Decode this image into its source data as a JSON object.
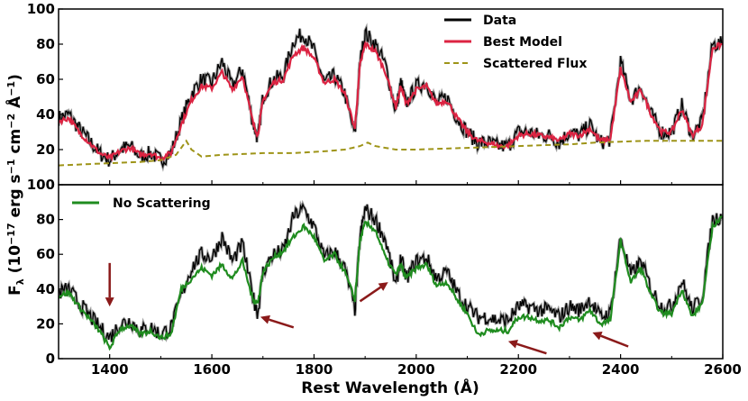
{
  "chart_data": [
    {
      "type": "line",
      "panel": "top",
      "xlim": [
        1300,
        2600
      ],
      "ylim": [
        0,
        100
      ],
      "ylabel_main": "F",
      "ylabel_sub": "λ",
      "ylabel_rest": " (10",
      "ylabel_exp1": "−17",
      "ylabel_mid": " erg s",
      "ylabel_exp2": "−1",
      "ylabel_mid2": " cm",
      "ylabel_exp3": "−2",
      "ylabel_mid3": " Å",
      "ylabel_exp4": "−1",
      "ylabel_end": ")",
      "xticks": [
        "1400",
        "1600",
        "1800",
        "2000",
        "2200",
        "2400",
        "2600"
      ],
      "yticks": [
        "20",
        "40",
        "60",
        "80",
        "100"
      ],
      "legend_position": "top-right",
      "series": [
        {
          "name": "Data",
          "color": "#000000",
          "style": "solid",
          "x": [
            1300,
            1320,
            1340,
            1360,
            1380,
            1400,
            1420,
            1440,
            1460,
            1480,
            1500,
            1520,
            1540,
            1560,
            1580,
            1600,
            1620,
            1640,
            1660,
            1680,
            1690,
            1700,
            1720,
            1740,
            1760,
            1780,
            1800,
            1820,
            1840,
            1860,
            1880,
            1890,
            1900,
            1920,
            1940,
            1960,
            1970,
            1980,
            2000,
            2020,
            2040,
            2060,
            2080,
            2100,
            2120,
            2140,
            2160,
            2180,
            2200,
            2220,
            2240,
            2260,
            2280,
            2300,
            2320,
            2340,
            2360,
            2380,
            2400,
            2420,
            2440,
            2460,
            2480,
            2500,
            2520,
            2540,
            2560,
            2580,
            2600
          ],
          "y": [
            38,
            40,
            32,
            25,
            18,
            14,
            20,
            22,
            16,
            18,
            14,
            18,
            36,
            52,
            60,
            58,
            70,
            56,
            66,
            36,
            26,
            50,
            60,
            62,
            82,
            86,
            76,
            58,
            62,
            52,
            28,
            70,
            86,
            80,
            68,
            42,
            58,
            46,
            56,
            58,
            46,
            50,
            38,
            30,
            24,
            24,
            22,
            22,
            30,
            30,
            28,
            28,
            24,
            30,
            28,
            34,
            24,
            26,
            70,
            48,
            56,
            40,
            30,
            30,
            45,
            28,
            36,
            80,
            80
          ]
        },
        {
          "name": "Best Model",
          "color": "#dc2342",
          "style": "solid",
          "x": [
            1300,
            1320,
            1340,
            1360,
            1380,
            1400,
            1420,
            1440,
            1460,
            1480,
            1500,
            1520,
            1540,
            1560,
            1580,
            1600,
            1620,
            1640,
            1660,
            1680,
            1690,
            1700,
            1720,
            1740,
            1760,
            1780,
            1800,
            1820,
            1840,
            1860,
            1880,
            1890,
            1900,
            1920,
            1940,
            1960,
            1970,
            1980,
            2000,
            2020,
            2040,
            2060,
            2080,
            2100,
            2120,
            2140,
            2160,
            2180,
            2200,
            2220,
            2240,
            2260,
            2280,
            2300,
            2320,
            2340,
            2360,
            2380,
            2400,
            2420,
            2440,
            2460,
            2480,
            2500,
            2520,
            2540,
            2560,
            2580,
            2600
          ],
          "y": [
            36,
            38,
            30,
            24,
            18,
            15,
            19,
            21,
            17,
            18,
            15,
            18,
            34,
            48,
            56,
            55,
            64,
            54,
            62,
            36,
            28,
            48,
            58,
            60,
            74,
            78,
            72,
            58,
            60,
            52,
            32,
            68,
            80,
            76,
            64,
            44,
            56,
            46,
            54,
            56,
            46,
            48,
            38,
            30,
            25,
            24,
            22,
            22,
            28,
            29,
            28,
            27,
            25,
            29,
            28,
            32,
            25,
            26,
            66,
            47,
            54,
            40,
            30,
            30,
            43,
            28,
            34,
            78,
            80
          ]
        },
        {
          "name": "Scattered Flux",
          "color": "#9e9418",
          "style": "dashed",
          "x": [
            1300,
            1340,
            1380,
            1420,
            1460,
            1500,
            1530,
            1550,
            1560,
            1580,
            1620,
            1700,
            1760,
            1820,
            1860,
            1890,
            1905,
            1920,
            1960,
            2000,
            2100,
            2200,
            2300,
            2350,
            2400,
            2450,
            2500,
            2600
          ],
          "y": [
            11,
            11.5,
            12,
            12.5,
            13,
            14,
            17,
            25,
            20,
            16,
            17,
            18,
            18,
            19,
            20,
            22,
            24,
            22,
            20,
            20,
            21,
            22,
            23,
            24,
            24.5,
            25,
            25,
            25
          ]
        }
      ]
    },
    {
      "type": "line",
      "panel": "bottom",
      "xlim": [
        1300,
        2600
      ],
      "ylim": [
        0,
        100
      ],
      "xlabel": "Rest Wavelength (Å)",
      "xticks": [
        "1400",
        "1600",
        "1800",
        "2000",
        "2200",
        "2400",
        "2600"
      ],
      "yticks": [
        "0",
        "20",
        "40",
        "60",
        "80",
        "100"
      ],
      "legend_position": "top-left",
      "series": [
        {
          "name": "Data",
          "color": "#000000",
          "style": "solid",
          "x": [
            1300,
            1320,
            1340,
            1360,
            1380,
            1400,
            1420,
            1440,
            1460,
            1480,
            1500,
            1520,
            1540,
            1560,
            1580,
            1600,
            1620,
            1640,
            1660,
            1680,
            1690,
            1700,
            1720,
            1740,
            1760,
            1780,
            1800,
            1820,
            1840,
            1860,
            1880,
            1890,
            1900,
            1920,
            1940,
            1960,
            1970,
            1980,
            2000,
            2020,
            2040,
            2060,
            2080,
            2100,
            2120,
            2140,
            2160,
            2180,
            2200,
            2220,
            2240,
            2260,
            2280,
            2300,
            2320,
            2340,
            2360,
            2380,
            2400,
            2420,
            2440,
            2460,
            2480,
            2500,
            2520,
            2540,
            2560,
            2580,
            2600
          ],
          "y": [
            38,
            40,
            32,
            25,
            18,
            12,
            20,
            22,
            16,
            18,
            14,
            18,
            36,
            52,
            60,
            58,
            70,
            56,
            66,
            36,
            26,
            50,
            60,
            62,
            82,
            86,
            76,
            58,
            62,
            52,
            28,
            70,
            86,
            80,
            68,
            42,
            58,
            46,
            56,
            58,
            46,
            50,
            38,
            30,
            24,
            24,
            22,
            22,
            30,
            30,
            28,
            28,
            24,
            30,
            28,
            34,
            24,
            26,
            70,
            48,
            56,
            40,
            30,
            30,
            45,
            28,
            36,
            80,
            82
          ]
        },
        {
          "name": "No Scattering",
          "color": "#1f8c1f",
          "style": "solid",
          "x": [
            1300,
            1320,
            1340,
            1360,
            1380,
            1400,
            1420,
            1440,
            1460,
            1480,
            1500,
            1520,
            1540,
            1560,
            1580,
            1600,
            1620,
            1640,
            1660,
            1680,
            1690,
            1700,
            1720,
            1740,
            1760,
            1780,
            1800,
            1820,
            1840,
            1860,
            1880,
            1890,
            1900,
            1920,
            1940,
            1960,
            1970,
            1980,
            2000,
            2020,
            2040,
            2060,
            2080,
            2100,
            2120,
            2140,
            2160,
            2180,
            2200,
            2220,
            2240,
            2260,
            2280,
            2300,
            2320,
            2340,
            2360,
            2380,
            2400,
            2420,
            2440,
            2460,
            2480,
            2500,
            2520,
            2540,
            2560,
            2580,
            2600
          ],
          "y": [
            36,
            38,
            30,
            23,
            16,
            6,
            17,
            19,
            14,
            16,
            12,
            14,
            40,
            46,
            52,
            48,
            54,
            46,
            56,
            34,
            32,
            50,
            58,
            62,
            70,
            76,
            70,
            56,
            60,
            50,
            34,
            68,
            78,
            74,
            58,
            48,
            54,
            46,
            52,
            54,
            42,
            44,
            34,
            26,
            14,
            16,
            16,
            16,
            24,
            24,
            22,
            22,
            18,
            24,
            22,
            28,
            20,
            22,
            68,
            44,
            52,
            36,
            26,
            26,
            40,
            24,
            32,
            76,
            82
          ]
        }
      ],
      "annotations": [
        {
          "name": "arrow-1400",
          "color": "#8b1a1a",
          "tip": [
            1400,
            30
          ],
          "tail": [
            1400,
            55
          ]
        },
        {
          "name": "arrow-1690",
          "color": "#8b1a1a",
          "tip": [
            1695,
            24
          ],
          "tail": [
            1760,
            18
          ]
        },
        {
          "name": "arrow-1950",
          "color": "#8b1a1a",
          "tip": [
            1945,
            44
          ],
          "tail": [
            1890,
            33
          ]
        },
        {
          "name": "arrow-2180",
          "color": "#8b1a1a",
          "tip": [
            2180,
            10
          ],
          "tail": [
            2255,
            3
          ]
        },
        {
          "name": "arrow-2350",
          "color": "#8b1a1a",
          "tip": [
            2345,
            15
          ],
          "tail": [
            2415,
            7
          ]
        }
      ]
    }
  ]
}
